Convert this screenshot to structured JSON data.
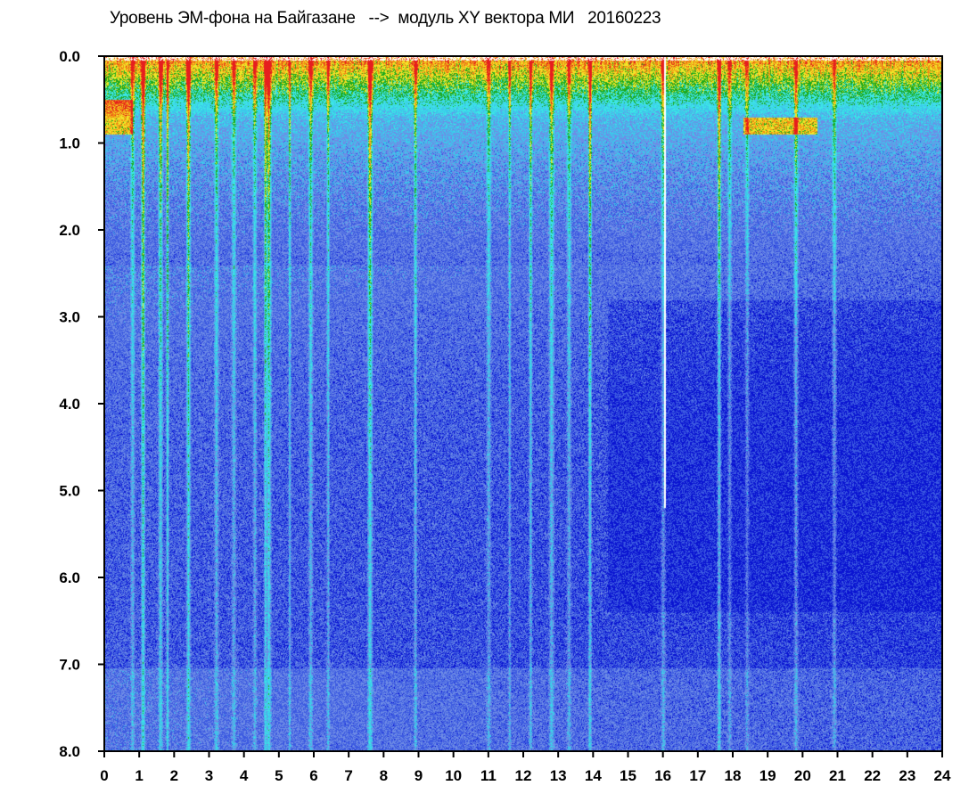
{
  "chart_data": {
    "type": "heatmap",
    "title": "Уровень ЭМ-фона на Байгазане   -->  модуль XY вектора МИ   20160223",
    "xlabel": "",
    "ylabel": "",
    "xlim": [
      0,
      24
    ],
    "ylim": [
      0,
      8
    ],
    "y_inverted": true,
    "x_ticks": [
      "0",
      "1",
      "2",
      "3",
      "4",
      "5",
      "6",
      "7",
      "8",
      "9",
      "10",
      "11",
      "12",
      "13",
      "14",
      "15",
      "16",
      "17",
      "18",
      "19",
      "20",
      "21",
      "22",
      "23",
      "24"
    ],
    "y_ticks": [
      "0.0",
      "1.0",
      "2.0",
      "3.0",
      "4.0",
      "5.0",
      "6.0",
      "7.0",
      "8.0"
    ],
    "colormap": [
      "#0a14d2",
      "#5a78e6",
      "#3ce6e6",
      "#1eaa1e",
      "#f0e628",
      "#f08c14",
      "#e61e1e",
      "#ffffff"
    ],
    "grid": false,
    "legend": "none",
    "colorbar": "none",
    "features": {
      "high_level_band_top_y": [
        0.0,
        0.6
      ],
      "vertical_streak_hours": [
        0.8,
        1.1,
        1.6,
        1.8,
        2.4,
        3.2,
        3.7,
        4.3,
        4.6,
        4.7,
        5.3,
        5.9,
        6.4,
        7.6,
        8.9,
        11.0,
        11.6,
        12.2,
        12.8,
        13.3,
        13.9,
        16.0,
        17.6,
        17.9,
        18.4,
        19.8,
        20.9
      ],
      "white_gap_hour": 16.05,
      "red_blob": {
        "x": [
          0.0,
          0.8
        ],
        "y": [
          0.5,
          0.9
        ]
      },
      "red_blob_2": {
        "x": [
          18.3,
          20.4
        ],
        "y": [
          0.7,
          0.9
        ]
      }
    }
  }
}
